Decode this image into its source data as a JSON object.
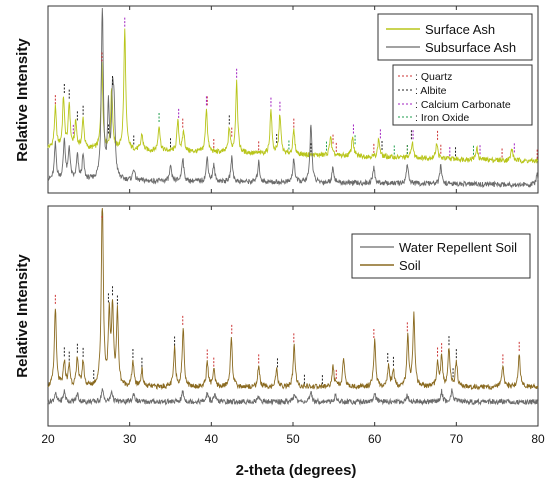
{
  "chart_data": [
    {
      "type": "line",
      "xlabel": "2-theta (degrees)",
      "ylabel": "Relative Intensity",
      "xlim": [
        20,
        80
      ],
      "xticks": [
        20,
        30,
        40,
        50,
        60,
        70,
        80
      ],
      "grid": false,
      "legend_position": "top-right",
      "series": [
        {
          "name": "Surface Ash",
          "color": "#b8c51a",
          "baseline": 0.2,
          "slope": -0.0011,
          "peaks": [
            [
              20.9,
              0.2
            ],
            [
              21.9,
              0.25
            ],
            [
              22.6,
              0.22
            ],
            [
              23.4,
              0.13
            ],
            [
              24.3,
              0.15
            ],
            [
              26.6,
              0.42
            ],
            [
              27.8,
              0.3
            ],
            [
              29.4,
              0.6
            ],
            [
              31.5,
              0.08
            ],
            [
              33.6,
              0.13
            ],
            [
              35.9,
              0.15
            ],
            [
              36.6,
              0.1
            ],
            [
              39.4,
              0.22
            ],
            [
              42.2,
              0.12
            ],
            [
              43.1,
              0.36
            ],
            [
              47.3,
              0.22
            ],
            [
              48.4,
              0.2
            ],
            [
              50.1,
              0.12
            ],
            [
              54.6,
              0.1
            ],
            [
              57.3,
              0.1
            ],
            [
              60.5,
              0.09
            ],
            [
              64.6,
              0.08
            ],
            [
              67.6,
              0.08
            ],
            [
              72.5,
              0.06
            ],
            [
              76.8,
              0.06
            ]
          ]
        },
        {
          "name": "Subsurface Ash",
          "color": "#6a6a6a",
          "baseline": 0.04,
          "slope": -0.0004,
          "peaks": [
            [
              20.9,
              0.18
            ],
            [
              22.0,
              0.2
            ],
            [
              22.6,
              0.16
            ],
            [
              23.6,
              0.12
            ],
            [
              24.3,
              0.12
            ],
            [
              26.65,
              0.88
            ],
            [
              27.4,
              0.35
            ],
            [
              27.9,
              0.38
            ],
            [
              28.1,
              0.3
            ],
            [
              30.5,
              0.06
            ],
            [
              35.0,
              0.07
            ],
            [
              36.5,
              0.12
            ],
            [
              39.5,
              0.12
            ],
            [
              40.3,
              0.08
            ],
            [
              42.5,
              0.12
            ],
            [
              45.8,
              0.1
            ],
            [
              50.1,
              0.12
            ],
            [
              52.2,
              0.3
            ],
            [
              54.9,
              0.08
            ],
            [
              59.9,
              0.08
            ],
            [
              64.0,
              0.1
            ],
            [
              68.1,
              0.09
            ],
            [
              79.9,
              0.05
            ]
          ]
        }
      ],
      "reference_legend": [
        {
          "label": ": Quartz",
          "color": "#cc3333"
        },
        {
          "label": ": Albite",
          "color": "#222222"
        },
        {
          "label": ": Calcium Carbonate",
          "color": "#a020c0"
        },
        {
          "label": ": Iron Oxide",
          "color": "#1e9e4c"
        }
      ],
      "reference_markers": {
        "quartz": [
          20.9,
          26.6,
          36.5,
          39.5,
          40.3,
          42.5,
          45.8,
          50.1,
          54.9,
          55.3,
          59.9,
          64.0,
          67.7,
          68.1,
          75.6,
          79.9
        ],
        "albite": [
          22.0,
          22.6,
          23.6,
          24.3,
          27.4,
          27.9,
          30.5,
          35.0,
          42.2,
          48.0,
          52.2,
          60.9,
          64.5,
          69.9
        ],
        "calcium_carbonate": [
          23.1,
          29.4,
          36.0,
          39.4,
          43.1,
          47.3,
          48.4,
          57.4,
          60.7,
          64.7,
          69.2,
          72.9,
          77.1
        ],
        "iron_oxide": [
          33.6,
          49.5,
          54.1,
          57.6,
          62.4,
          64.0,
          72.1
        ]
      }
    },
    {
      "type": "line",
      "xlabel": "2-theta (degrees)",
      "ylabel": "Relative Intensity",
      "xlim": [
        20,
        80
      ],
      "xticks": [
        20,
        30,
        40,
        50,
        60,
        70,
        80
      ],
      "grid": false,
      "legend_position": "top-right",
      "series": [
        {
          "name": "Water Repellent Soil",
          "color": "#6a6a6a",
          "baseline": 0.03,
          "slope": 0,
          "peaks": [
            [
              20.9,
              0.04
            ],
            [
              22.0,
              0.05
            ],
            [
              23.6,
              0.04
            ],
            [
              26.65,
              0.06
            ],
            [
              27.8,
              0.05
            ],
            [
              30.5,
              0.04
            ],
            [
              36.5,
              0.05
            ],
            [
              39.5,
              0.04
            ],
            [
              40.4,
              0.03
            ],
            [
              45.8,
              0.03
            ],
            [
              50.2,
              0.04
            ],
            [
              52.2,
              0.04
            ],
            [
              55.2,
              0.03
            ],
            [
              60.0,
              0.04
            ],
            [
              64.0,
              0.03
            ],
            [
              68.2,
              0.05
            ],
            [
              69.5,
              0.06
            ]
          ]
        },
        {
          "name": "Soil",
          "color": "#8a6a20",
          "baseline": 0.1,
          "slope": 0,
          "peaks": [
            [
              20.9,
              0.38
            ],
            [
              22.0,
              0.12
            ],
            [
              22.6,
              0.1
            ],
            [
              23.6,
              0.14
            ],
            [
              24.3,
              0.12
            ],
            [
              26.65,
              0.92
            ],
            [
              27.5,
              0.32
            ],
            [
              27.9,
              0.36
            ],
            [
              28.5,
              0.35
            ],
            [
              30.4,
              0.12
            ],
            [
              31.5,
              0.08
            ],
            [
              35.5,
              0.18
            ],
            [
              36.55,
              0.28
            ],
            [
              39.5,
              0.12
            ],
            [
              40.3,
              0.08
            ],
            [
              42.45,
              0.24
            ],
            [
              45.8,
              0.1
            ],
            [
              48.0,
              0.08
            ],
            [
              50.15,
              0.2
            ],
            [
              54.9,
              0.1
            ],
            [
              56.2,
              0.14
            ],
            [
              60.0,
              0.22
            ],
            [
              61.7,
              0.1
            ],
            [
              62.3,
              0.08
            ],
            [
              64.05,
              0.24
            ],
            [
              64.8,
              0.34
            ],
            [
              67.7,
              0.12
            ],
            [
              68.2,
              0.14
            ],
            [
              69.1,
              0.18
            ],
            [
              70.0,
              0.12
            ],
            [
              75.7,
              0.1
            ],
            [
              77.7,
              0.16
            ]
          ]
        }
      ],
      "reference_markers": {
        "quartz": [
          20.9,
          26.6,
          36.5,
          39.5,
          40.3,
          42.5,
          45.8,
          50.1,
          55.3,
          59.9,
          64.0,
          67.7,
          68.2,
          75.7,
          77.7
        ],
        "albite": [
          22.0,
          22.6,
          23.6,
          24.3,
          25.6,
          27.4,
          27.9,
          28.5,
          30.4,
          31.5,
          35.5,
          48.1,
          51.4,
          53.6,
          61.6,
          62.3,
          69.1,
          69.6,
          70.0
        ]
      }
    }
  ]
}
